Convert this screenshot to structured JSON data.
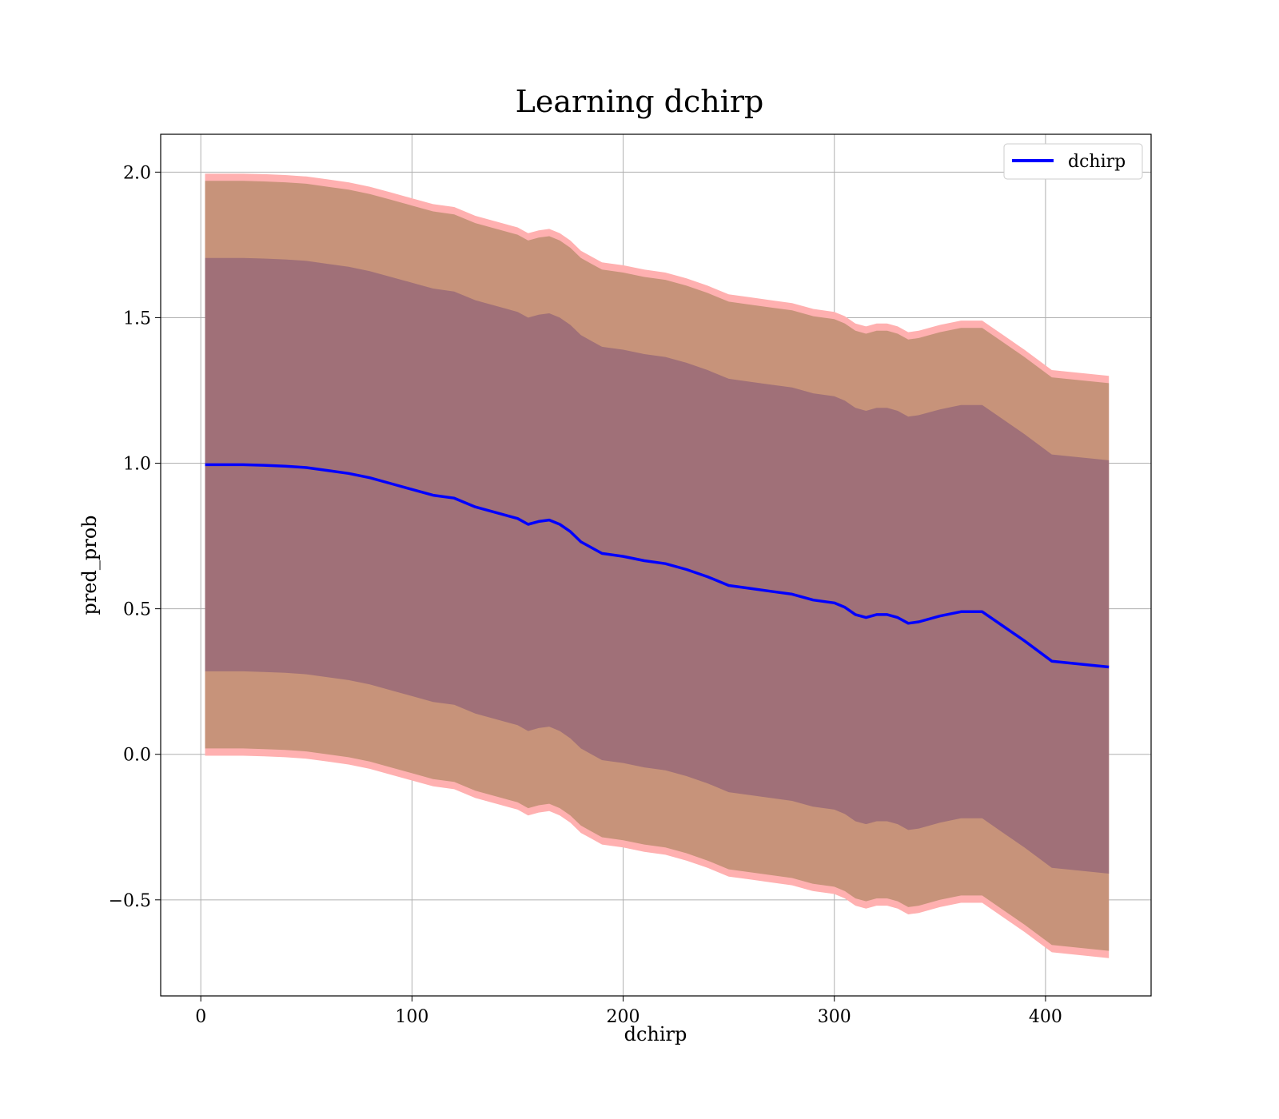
{
  "chart_data": {
    "type": "line",
    "title": "Learning dchirp",
    "xlabel": "dchirp",
    "ylabel": "pred_prob",
    "xlim": [
      -19,
      450
    ],
    "ylim": [
      -0.83,
      2.13
    ],
    "grid": true,
    "legend_position": "top-right",
    "x_ticks": [
      0,
      100,
      200,
      300,
      400
    ],
    "y_ticks": [
      -0.5,
      0.0,
      0.5,
      1.0,
      1.5,
      2.0
    ],
    "x_tick_labels": [
      "0",
      "100",
      "200",
      "300",
      "400"
    ],
    "y_tick_labels": [
      "−0.5",
      "0.0",
      "0.5",
      "1.0",
      "1.5",
      "2.0"
    ],
    "colors": {
      "line": "#0000ff",
      "inner_band": "#a07078",
      "middle_band": "#c7937a",
      "outer_band": "#ffb0b0"
    },
    "series": [
      {
        "name": "dchirp",
        "x": [
          2,
          10,
          20,
          30,
          40,
          50,
          60,
          70,
          80,
          90,
          100,
          110,
          120,
          130,
          140,
          150,
          155,
          160,
          165,
          170,
          175,
          180,
          185,
          190,
          200,
          210,
          220,
          230,
          240,
          250,
          260,
          270,
          280,
          290,
          300,
          305,
          310,
          315,
          320,
          325,
          330,
          335,
          340,
          350,
          360,
          370,
          380,
          390,
          403,
          430
        ],
        "y": [
          0.995,
          0.995,
          0.995,
          0.993,
          0.99,
          0.985,
          0.975,
          0.965,
          0.95,
          0.93,
          0.91,
          0.89,
          0.88,
          0.85,
          0.83,
          0.81,
          0.79,
          0.8,
          0.805,
          0.79,
          0.765,
          0.73,
          0.71,
          0.69,
          0.68,
          0.665,
          0.655,
          0.635,
          0.61,
          0.58,
          0.57,
          0.56,
          0.55,
          0.53,
          0.52,
          0.505,
          0.48,
          0.47,
          0.48,
          0.48,
          0.47,
          0.45,
          0.455,
          0.475,
          0.49,
          0.49,
          0.44,
          0.39,
          0.32,
          0.3
        ]
      }
    ],
    "bands": [
      {
        "level": "outer",
        "half_width": 1.0
      },
      {
        "level": "middle",
        "half_width": 0.975
      },
      {
        "level": "inner",
        "half_width": 0.71
      }
    ]
  }
}
